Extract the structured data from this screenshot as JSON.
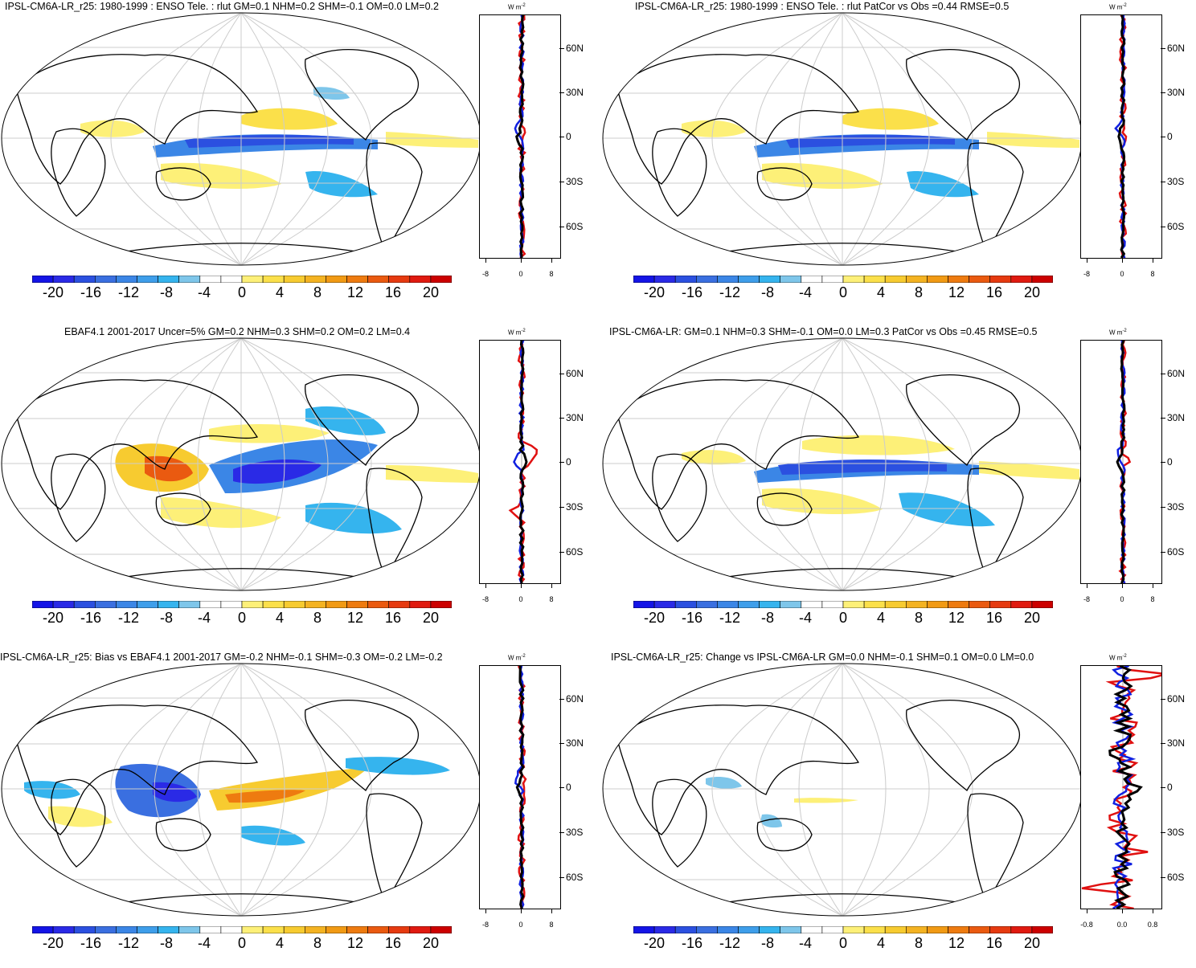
{
  "colorbar": {
    "ticks": [
      "-20",
      "-16",
      "-12",
      "-8",
      "-4",
      "0",
      "4",
      "8",
      "12",
      "16",
      "20"
    ],
    "colors": [
      "#1414e6",
      "#2a2ae6",
      "#2b50e0",
      "#3a6fe0",
      "#3b86e6",
      "#3e9eea",
      "#35b4ee",
      "#7ec6ea",
      "#ffffff",
      "#ffffff",
      "#fdf078",
      "#fbe04a",
      "#f7cb30",
      "#f4b322",
      "#f19a14",
      "#ee7b10",
      "#ea5a10",
      "#e63a10",
      "#e01a10",
      "#cc0000"
    ]
  },
  "zonal_unit": "W m",
  "zonal_unit_sup": "-2",
  "lat_ticks": [
    "60N",
    "30N",
    "0",
    "30S",
    "60S"
  ],
  "panels": [
    {
      "title": "IPSL-CM6A-LR_r25: 1980-1999 : ENSO Tele. : rlut GM=0.1 NHM=0.2 SHM=-0.1 OM=0.0 LM=0.2",
      "xticks": [
        "-8",
        "0",
        "8"
      ]
    },
    {
      "title": "IPSL-CM6A-LR_r25: 1980-1999 : ENSO Tele. : rlut PatCor vs Obs =0.44 RMSE=0.5",
      "xticks": [
        "-8",
        "0",
        "8"
      ]
    },
    {
      "title": "EBAF4.1 2001-2017 Uncer=5% GM=0.2 NHM=0.3 SHM=0.2 OM=0.2 LM=0.4",
      "xticks": [
        "-8",
        "0",
        "8"
      ]
    },
    {
      "title": "IPSL-CM6A-LR: GM=0.1 NHM=0.3 SHM=-0.1 OM=0.0 LM=0.3 PatCor vs Obs =0.45 RMSE=0.5",
      "xticks": [
        "-8",
        "0",
        "8"
      ]
    },
    {
      "title": "IPSL-CM6A-LR_r25: Bias vs EBAF4.1 2001-2017 GM=-0.2 NHM=-0.1 SHM=-0.3 OM=-0.2 LM=-0.2",
      "xticks": [
        "-8",
        "0",
        "8"
      ]
    },
    {
      "title": "IPSL-CM6A-LR_r25: Change vs IPSL-CM6A-LR GM=0.0 NHM=-0.1 SHM=0.1 OM=0.0 LM=0.0",
      "xticks": [
        "-0.8",
        "0.0",
        "0.8"
      ]
    }
  ]
}
